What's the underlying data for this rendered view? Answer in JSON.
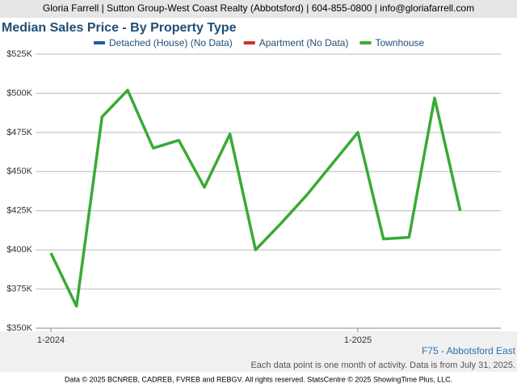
{
  "header": "Gloria Farrell | Sutton Group-West Coast Realty (Abbotsford) | 604-855-0800 | info@gloriafarrell.com",
  "chart_data": {
    "type": "line",
    "title": "Median Sales Price - By Property Type",
    "categories": [
      "1-2024",
      null,
      null,
      null,
      null,
      null,
      null,
      null,
      null,
      null,
      null,
      null,
      "1-2025",
      null,
      null,
      null,
      null
    ],
    "series": [
      {
        "name": "Detached (House) (No Data)",
        "color": "#1f5ba6",
        "values": [
          null,
          null,
          null,
          null,
          null,
          null,
          null,
          null,
          null,
          null,
          null,
          null,
          null,
          null,
          null,
          null,
          null
        ]
      },
      {
        "name": "Apartment (No Data)",
        "color": "#d32f2f",
        "values": [
          null,
          null,
          null,
          null,
          null,
          null,
          null,
          null,
          null,
          null,
          null,
          null,
          null,
          null,
          null,
          null,
          null
        ]
      },
      {
        "name": "Townhouse",
        "color": "#3aaa35",
        "values": [
          398000,
          364000,
          485000,
          502000,
          465000,
          470000,
          440000,
          474000,
          400000,
          417000,
          435000,
          455000,
          475000,
          407000,
          408000,
          497000,
          425000
        ]
      }
    ],
    "ylim": [
      350000,
      525000
    ],
    "yticks": [
      {
        "value": 350000,
        "label": "$350K"
      },
      {
        "value": 375000,
        "label": "$375K"
      },
      {
        "value": 400000,
        "label": "$400K"
      },
      {
        "value": 425000,
        "label": "$425K"
      },
      {
        "value": 450000,
        "label": "$450K"
      },
      {
        "value": 475000,
        "label": "$475K"
      },
      {
        "value": 500000,
        "label": "$500K"
      },
      {
        "value": 525000,
        "label": "$525K"
      }
    ],
    "grid": true,
    "legend": "top",
    "annotations": [
      "F75 - Abbotsford East",
      "Each data point is one month of activity. Data is from July 31, 2025."
    ]
  },
  "footer": "Data © 2025 BCNREB, CADREB, FVREB and REBGV. All rights reserved. StatsCentre © 2025 ShowingTime Plus, LLC."
}
